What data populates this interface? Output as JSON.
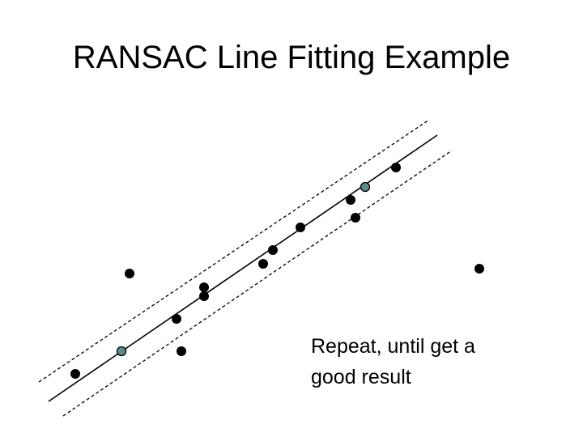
{
  "title": "RANSAC Line Fitting Example",
  "caption": {
    "lines": [
      "Repeat, until get a",
      "good result"
    ]
  }
}
